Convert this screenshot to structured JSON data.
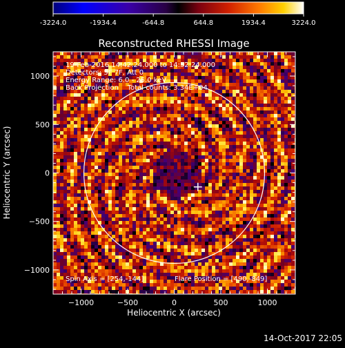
{
  "colorbar": {
    "ticks": [
      "-3224.0",
      "-1934.4",
      "-644.8",
      "644.8",
      "1934.4",
      "3224.0"
    ],
    "range": [
      -3224.0,
      3224.0
    ]
  },
  "plot": {
    "title": "Reconstructed RHESSI Image",
    "xlabel": "Heliocentric X (arcsec)",
    "ylabel": "Heliocentric Y (arcsec)",
    "info": [
      "19-Feb-2016 14:42:24.000 to 14:52:24.000",
      "Detectors: 5F 7F, Att 0",
      "Energy Range: 6.0 - 25.0 keV",
      "Back Projection    Total counts: 3.34E+04"
    ],
    "spin_axis": "Spin Axis = [254,-144]",
    "flare_position": "Flare Position = [490,-849]"
  },
  "footer": {
    "timestamp": "14-Oct-2017 22:05"
  },
  "chart_data": {
    "type": "heatmap",
    "title": "Reconstructed RHESSI Image",
    "xlabel": "Heliocentric X (arcsec)",
    "ylabel": "Heliocentric Y (arcsec)",
    "xlim": [
      -1300,
      1300
    ],
    "ylim": [
      -1250,
      1250
    ],
    "x_ticks": [
      -1000,
      -500,
      0,
      500,
      1000
    ],
    "y_ticks": [
      -1000,
      -500,
      0,
      500,
      1000
    ],
    "colorscale": "rainbow/hot",
    "color_range": [
      -3224.0,
      3224.0
    ],
    "solar_limb_radius": 970,
    "marker": [
      254,
      -144
    ]
  }
}
